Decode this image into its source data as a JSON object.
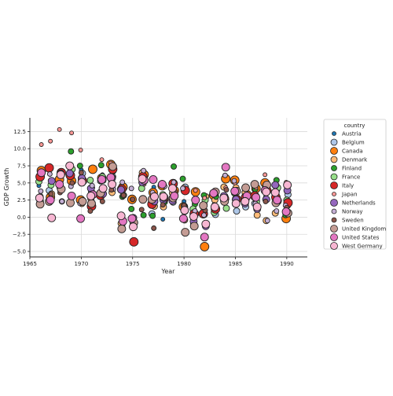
{
  "chart_data": {
    "type": "scatter",
    "title": "",
    "xlabel": "Year",
    "ylabel": "GDP Growth",
    "xlim": [
      1965,
      1992
    ],
    "ylim": [
      -5.8,
      14.5
    ],
    "xticks": [
      "1965",
      "1970",
      "1975",
      "1980",
      "1985",
      "1990"
    ],
    "yticks": [
      "−5.0",
      "−2.5",
      "0.0",
      "2.5",
      "5.0",
      "7.5",
      "10.0",
      "12.5"
    ],
    "grid": true,
    "legend": {
      "title": "country",
      "position": "right"
    },
    "series": [
      {
        "name": "Austria",
        "color": "#1f77b4",
        "size": 2.5,
        "x": [
          1966,
          1967,
          1968,
          1969,
          1970,
          1971,
          1972,
          1973,
          1974,
          1975,
          1976,
          1977,
          1978,
          1979,
          1980,
          1981,
          1982,
          1983,
          1984,
          1985,
          1986,
          1987,
          1988,
          1989,
          1990
        ],
        "y": [
          4.6,
          3.1,
          4.3,
          6.1,
          6.9,
          5.3,
          6.2,
          4.8,
          3.9,
          -0.4,
          4.6,
          4.4,
          -0.3,
          4.7,
          2.3,
          -0.1,
          1.9,
          2.7,
          1.3,
          2.4,
          2.3,
          1.7,
          3.0,
          3.9,
          4.6
        ]
      },
      {
        "name": "Belgium",
        "color": "#aec7e8",
        "size": 4,
        "x": [
          1966,
          1967,
          1968,
          1969,
          1970,
          1971,
          1972,
          1973,
          1974,
          1975,
          1976,
          1977,
          1978,
          1979,
          1980,
          1981,
          1982,
          1983,
          1984,
          1985,
          1986,
          1987,
          1988,
          1989,
          1990
        ],
        "y": [
          3.0,
          3.9,
          4.2,
          6.6,
          6.4,
          3.7,
          5.3,
          5.9,
          4.1,
          -1.4,
          5.4,
          0.5,
          2.7,
          2.2,
          4.4,
          -1.1,
          1.5,
          0.4,
          2.2,
          0.9,
          1.5,
          2.0,
          4.9,
          3.5,
          3.3
        ]
      },
      {
        "name": "Canada",
        "color": "#ff7f0e",
        "size": 5.5,
        "x": [
          1966,
          1967,
          1968,
          1969,
          1970,
          1971,
          1972,
          1973,
          1974,
          1975,
          1976,
          1977,
          1978,
          1979,
          1980,
          1981,
          1982,
          1983,
          1984,
          1985,
          1986,
          1987,
          1988,
          1989,
          1990
        ],
        "y": [
          6.8,
          2.9,
          5.5,
          5.3,
          2.5,
          7.0,
          5.7,
          7.7,
          4.4,
          2.6,
          6.2,
          3.6,
          4.6,
          3.9,
          1.5,
          3.7,
          -4.3,
          3.2,
          5.6,
          5.4,
          3.3,
          4.2,
          5.0,
          2.4,
          -0.2
        ]
      },
      {
        "name": "Denmark",
        "color": "#ffbb78",
        "size": 4,
        "x": [
          1966,
          1967,
          1968,
          1969,
          1970,
          1971,
          1972,
          1973,
          1974,
          1975,
          1976,
          1977,
          1978,
          1979,
          1980,
          1981,
          1982,
          1983,
          1984,
          1985,
          1986,
          1987,
          1988,
          1989,
          1990
        ],
        "y": [
          2.7,
          3.4,
          4.0,
          6.3,
          2.0,
          2.7,
          5.4,
          3.6,
          -0.9,
          -0.7,
          6.5,
          1.6,
          1.5,
          3.5,
          -0.4,
          -0.9,
          3.0,
          2.5,
          4.4,
          4.3,
          3.6,
          0.3,
          -0.5,
          0.6,
          1.7
        ]
      },
      {
        "name": "Finland",
        "color": "#2ca02c",
        "size": 3.5,
        "x": [
          1966,
          1967,
          1968,
          1969,
          1970,
          1971,
          1972,
          1973,
          1974,
          1975,
          1976,
          1977,
          1978,
          1979,
          1980,
          1981,
          1982,
          1983,
          1984,
          1985,
          1986,
          1987,
          1988,
          1989,
          1990
        ],
        "y": [
          2.3,
          2.2,
          2.3,
          9.6,
          7.5,
          2.1,
          7.6,
          6.7,
          3.0,
          1.2,
          0.3,
          0.2,
          2.2,
          7.4,
          5.6,
          1.9,
          3.2,
          3.0,
          3.1,
          3.5,
          2.4,
          4.1,
          4.8,
          5.4,
          0.3
        ]
      },
      {
        "name": "France",
        "color": "#98df8a",
        "size": 4,
        "x": [
          1966,
          1967,
          1968,
          1969,
          1970,
          1971,
          1972,
          1973,
          1974,
          1975,
          1976,
          1977,
          1978,
          1979,
          1980,
          1981,
          1982,
          1983,
          1984,
          1985,
          1986,
          1987,
          1988,
          1989,
          1990
        ],
        "y": [
          5.2,
          4.7,
          4.3,
          7.0,
          5.7,
          5.4,
          5.9,
          5.4,
          3.2,
          -0.3,
          4.2,
          3.2,
          3.3,
          3.2,
          1.6,
          1.2,
          2.5,
          0.7,
          1.3,
          1.9,
          2.5,
          2.3,
          4.4,
          4.3,
          2.5
        ]
      },
      {
        "name": "Italy",
        "color": "#d62728",
        "size": 5.5,
        "x": [
          1966,
          1967,
          1968,
          1969,
          1970,
          1971,
          1972,
          1973,
          1974,
          1975,
          1976,
          1977,
          1978,
          1979,
          1980,
          1981,
          1982,
          1983,
          1984,
          1985,
          1986,
          1987,
          1988,
          1989,
          1990
        ],
        "y": [
          5.9,
          7.2,
          6.5,
          6.1,
          5.3,
          1.6,
          3.2,
          7.0,
          4.1,
          -3.6,
          5.9,
          1.9,
          2.7,
          4.9,
          3.9,
          0.5,
          0.5,
          1.2,
          2.7,
          2.6,
          2.9,
          3.1,
          3.9,
          2.9,
          2.1
        ]
      },
      {
        "name": "Japan",
        "color": "#ff9896",
        "size": 2.5,
        "x": [
          1966,
          1967,
          1968,
          1969,
          1970,
          1971,
          1972,
          1973,
          1974,
          1975,
          1976,
          1977,
          1978,
          1979,
          1980,
          1981,
          1982,
          1983,
          1984,
          1985,
          1986,
          1987,
          1988,
          1989,
          1990
        ],
        "y": [
          10.6,
          11.1,
          12.8,
          12.3,
          9.8,
          4.3,
          8.4,
          7.9,
          -1.2,
          2.6,
          4.8,
          5.3,
          5.1,
          5.2,
          4.4,
          3.9,
          2.8,
          3.2,
          4.3,
          5.0,
          2.6,
          4.3,
          6.2,
          4.7,
          5.1
        ]
      },
      {
        "name": "Netherlands",
        "color": "#9467bd",
        "size": 4.5,
        "x": [
          1966,
          1967,
          1968,
          1969,
          1970,
          1971,
          1972,
          1973,
          1974,
          1975,
          1976,
          1977,
          1978,
          1979,
          1980,
          1981,
          1982,
          1983,
          1984,
          1985,
          1986,
          1987,
          1988,
          1989,
          1990
        ],
        "y": [
          2.7,
          5.3,
          6.4,
          6.4,
          5.7,
          4.2,
          3.4,
          5.7,
          4.0,
          -0.1,
          5.1,
          2.3,
          2.5,
          2.4,
          0.9,
          -0.6,
          -1.3,
          1.4,
          3.1,
          2.6,
          2.0,
          1.2,
          2.6,
          4.7,
          3.9
        ]
      },
      {
        "name": "Norway",
        "color": "#c5b0d5",
        "size": 3,
        "x": [
          1966,
          1967,
          1968,
          1969,
          1970,
          1971,
          1972,
          1973,
          1974,
          1975,
          1976,
          1977,
          1978,
          1979,
          1980,
          1981,
          1982,
          1983,
          1984,
          1985,
          1986,
          1987,
          1988,
          1989,
          1990
        ],
        "y": [
          3.8,
          6.3,
          2.3,
          4.5,
          2.0,
          4.6,
          5.2,
          4.1,
          5.1,
          4.2,
          6.8,
          3.6,
          4.5,
          5.1,
          4.2,
          0.9,
          0.3,
          3.4,
          6.1,
          5.3,
          4.2,
          2.0,
          -0.5,
          0.9,
          1.7
        ]
      },
      {
        "name": "Sweden",
        "color": "#8c564b",
        "size": 3,
        "x": [
          1966,
          1967,
          1968,
          1969,
          1970,
          1971,
          1972,
          1973,
          1974,
          1975,
          1976,
          1977,
          1978,
          1979,
          1980,
          1981,
          1982,
          1983,
          1984,
          1985,
          1986,
          1987,
          1988,
          1989,
          1990
        ],
        "y": [
          2.1,
          3.4,
          3.6,
          5.0,
          6.5,
          0.9,
          2.3,
          4.0,
          3.2,
          2.6,
          1.1,
          -1.6,
          1.8,
          3.8,
          1.7,
          0.0,
          1.0,
          1.8,
          4.0,
          1.9,
          2.3,
          3.1,
          2.3,
          2.4,
          1.4
        ]
      },
      {
        "name": "United Kingdom",
        "color": "#c49c94",
        "size": 5,
        "x": [
          1966,
          1967,
          1968,
          1969,
          1970,
          1971,
          1972,
          1973,
          1974,
          1975,
          1976,
          1977,
          1978,
          1979,
          1980,
          1981,
          1982,
          1983,
          1984,
          1985,
          1986,
          1987,
          1988,
          1989,
          1990
        ],
        "y": [
          1.9,
          2.3,
          4.1,
          2.1,
          2.3,
          2.0,
          3.5,
          7.4,
          -1.7,
          -0.8,
          2.6,
          2.6,
          2.9,
          2.8,
          -2.2,
          -1.3,
          1.7,
          3.7,
          2.3,
          3.8,
          4.3,
          4.8,
          4.7,
          2.1,
          0.6
        ]
      },
      {
        "name": "United States",
        "color": "#e377c2",
        "size": 5,
        "x": [
          1966,
          1967,
          1968,
          1969,
          1970,
          1971,
          1972,
          1973,
          1974,
          1975,
          1976,
          1977,
          1978,
          1979,
          1980,
          1981,
          1982,
          1983,
          1984,
          1985,
          1986,
          1987,
          1988,
          1989,
          1990
        ],
        "y": [
          6.5,
          2.5,
          4.8,
          3.1,
          -0.2,
          3.3,
          5.5,
          5.8,
          -0.6,
          -0.2,
          5.4,
          5.5,
          4.8,
          3.1,
          -0.2,
          2.5,
          -2.9,
          3.5,
          7.3,
          3.8,
          3.1,
          2.9,
          3.9,
          2.5,
          0.8
        ]
      },
      {
        "name": "West Germany",
        "color": "#f7b6d2",
        "size": 5,
        "x": [
          1966,
          1967,
          1968,
          1969,
          1970,
          1971,
          1972,
          1973,
          1974,
          1975,
          1976,
          1977,
          1978,
          1979,
          1980,
          1981,
          1982,
          1983,
          1984,
          1985,
          1986,
          1987,
          1988,
          1989,
          1990
        ],
        "y": [
          2.8,
          -0.1,
          6.2,
          7.5,
          5.1,
          3.1,
          4.2,
          4.8,
          0.2,
          -1.4,
          5.6,
          3.0,
          3.0,
          4.2,
          1.0,
          0.1,
          -1.0,
          1.5,
          2.8,
          2.0,
          2.3,
          1.5,
          3.7,
          3.6,
          4.7
        ]
      }
    ]
  }
}
